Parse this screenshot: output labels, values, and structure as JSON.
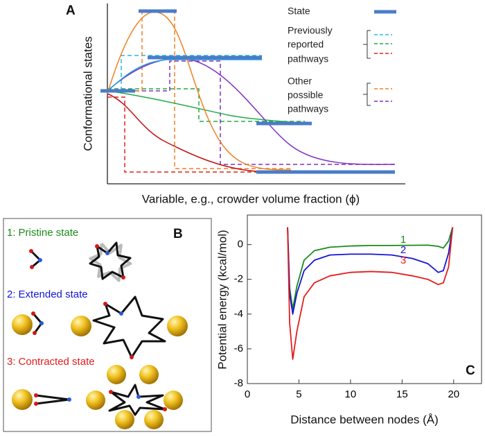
{
  "panel_a": {
    "label": "A",
    "y_label": "Conformational states",
    "x_label": "Variable, e.g., crowder volume fraction (ϕ)",
    "legend": {
      "state": "State",
      "previous": [
        "Previously",
        "reported",
        "pathways"
      ],
      "other": [
        "Other",
        "possible",
        "pathways"
      ]
    }
  },
  "panel_b": {
    "label": "B",
    "states": [
      {
        "number": "1:",
        "name": "Pristine state"
      },
      {
        "number": "2:",
        "name": "Extended state"
      },
      {
        "number": "3:",
        "name": "Contracted state"
      }
    ]
  },
  "chart_data": {
    "type": "line",
    "label": "C",
    "xlabel": "Distance between nodes (Å)",
    "ylabel": "Potential energy (kcal/mol)",
    "x": [
      3.9,
      4.1,
      4.4,
      4.8,
      5.5,
      6.5,
      8,
      10,
      12,
      14,
      16,
      17.5,
      18.5,
      19,
      19.5,
      19.9
    ],
    "series": [
      {
        "name": "1",
        "color": "#1a8a1a",
        "values": [
          1,
          -2.5,
          -3.7,
          -2.4,
          -0.9,
          -0.35,
          -0.15,
          -0.08,
          -0.05,
          -0.05,
          -0.04,
          -0.03,
          -0.1,
          -0.2,
          0.2,
          1
        ]
      },
      {
        "name": "2",
        "color": "#1414d8",
        "values": [
          1,
          -2.8,
          -4.0,
          -2.8,
          -1.5,
          -0.9,
          -0.6,
          -0.55,
          -0.55,
          -0.6,
          -0.8,
          -1.1,
          -1.6,
          -1.5,
          -0.5,
          1
        ]
      },
      {
        "name": "3",
        "color": "#e51b1b",
        "values": [
          1,
          -4.5,
          -6.6,
          -5,
          -3,
          -2.2,
          -1.8,
          -1.6,
          -1.55,
          -1.6,
          -1.8,
          -2.0,
          -2.3,
          -2.2,
          -1.3,
          1
        ]
      }
    ],
    "xlim": [
      0,
      22.7
    ],
    "ylim": [
      -8,
      1.7
    ],
    "xticks": [
      0,
      5,
      10,
      15,
      20
    ],
    "yticks": [
      0,
      -2,
      -4,
      -6,
      -8
    ]
  }
}
